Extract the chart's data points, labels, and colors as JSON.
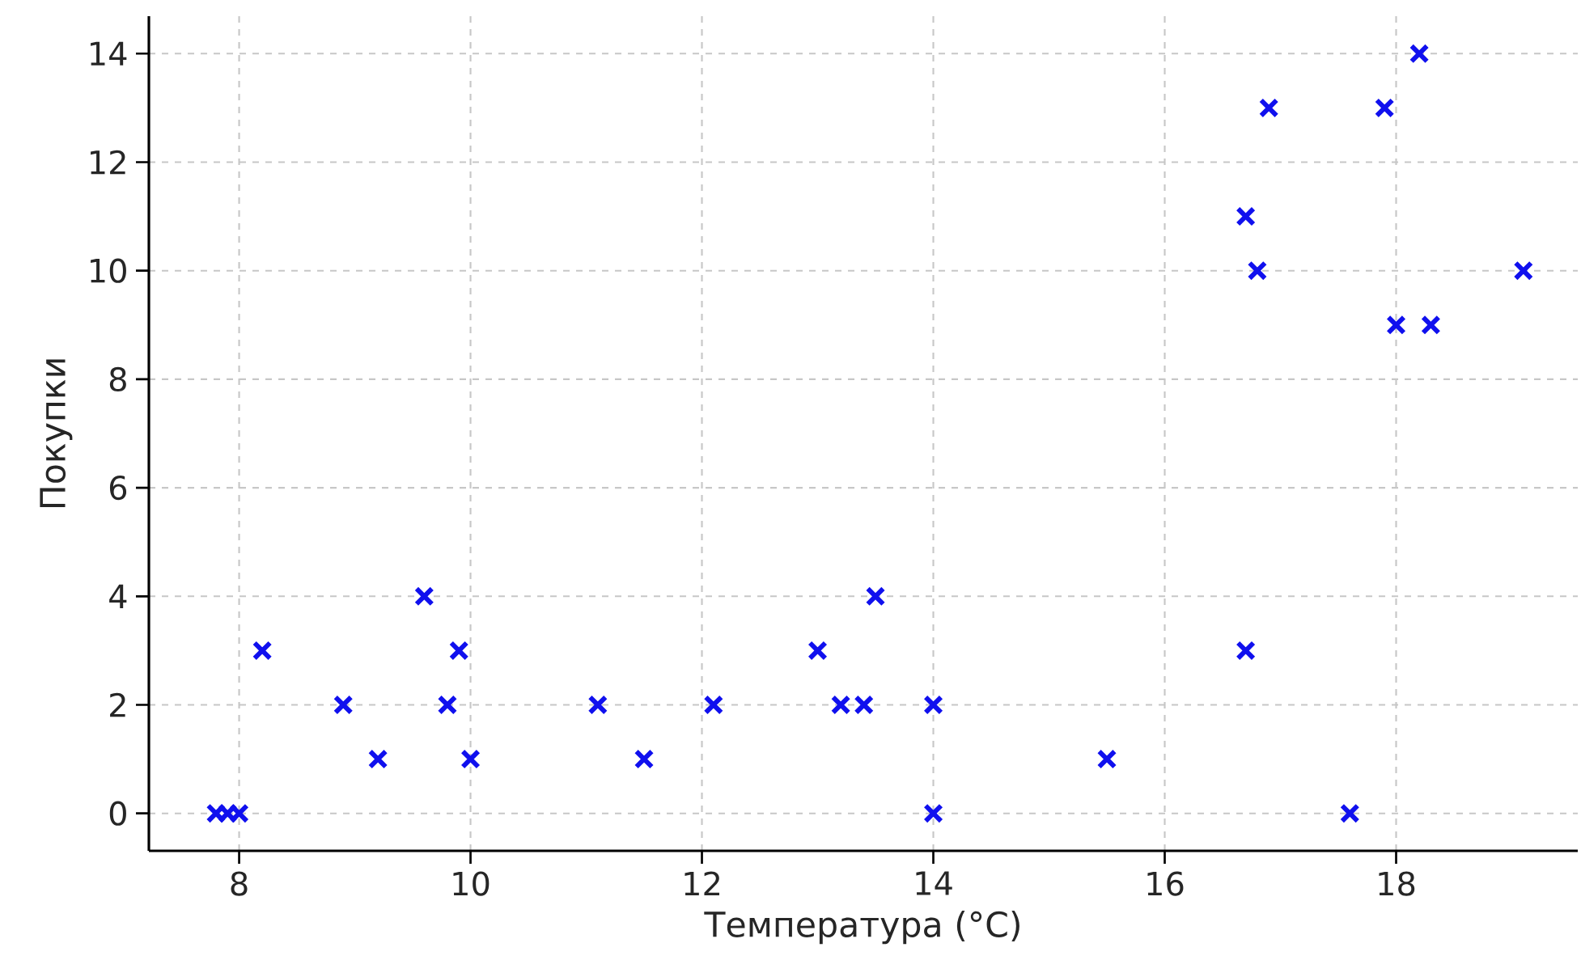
{
  "chart_data": {
    "type": "scatter",
    "xlabel": "Температура (°C)",
    "ylabel": "Покупки",
    "series": [
      {
        "color": "#1010ee",
        "x": [
          7.8,
          7.9,
          8.0,
          8.2,
          8.9,
          9.2,
          9.6,
          9.8,
          9.9,
          10.0,
          11.1,
          11.5,
          12.1,
          13.0,
          13.2,
          13.4,
          13.5,
          14.0,
          14.0,
          15.5,
          16.7,
          16.7,
          16.8,
          16.9,
          17.6,
          17.9,
          18.0,
          18.2,
          18.3,
          19.1
        ],
        "values": [
          0,
          0,
          0,
          3,
          2,
          1,
          4,
          2,
          3,
          1,
          2,
          1,
          2,
          3,
          2,
          2,
          4,
          2,
          0,
          1,
          11,
          3,
          10,
          13,
          0,
          13,
          9,
          14,
          9,
          10
        ]
      }
    ],
    "xlim": [
      7.22,
      19.57
    ],
    "ylim": [
      -0.69,
      14.69
    ],
    "xticks": [
      8,
      10,
      12,
      14,
      16,
      18
    ],
    "yticks": [
      0,
      2,
      4,
      6,
      8,
      10,
      12,
      14
    ],
    "grid": true,
    "marker": "cross"
  }
}
